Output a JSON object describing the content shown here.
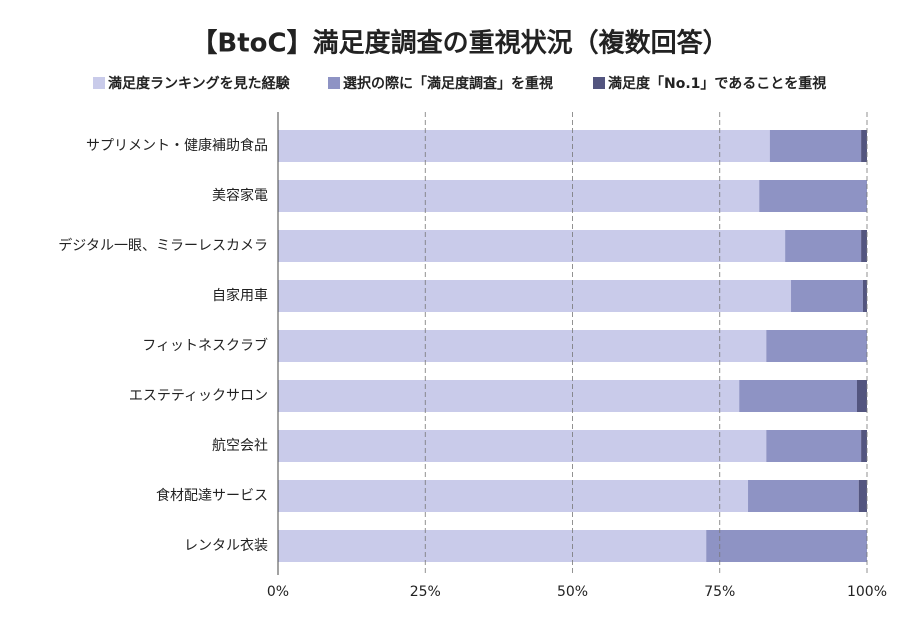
{
  "chart_data": {
    "type": "stacked-barh",
    "title": "【BtoC】満足度調査の重視状況（複数回答）",
    "categories": [
      "サプリメント・健康補助食品",
      "美容家電",
      "デジタル一眼、ミラーレスカメラ",
      "自家用車",
      "フィットネスクラブ",
      "エステティックサロン",
      "航空会社",
      "食材配達サービス",
      "レンタル衣装"
    ],
    "series": [
      {
        "name": "満足度ランキングを見た経験",
        "color": "#c9cbea",
        "values": [
          83.5,
          81.7,
          86.1,
          87.1,
          82.9,
          78.3,
          82.9,
          79.8,
          72.7
        ]
      },
      {
        "name": "選択の際に「満足度調査」を重視",
        "color": "#8e93c4",
        "values": [
          15.5,
          18.3,
          12.9,
          12.2,
          17.1,
          20.0,
          16.1,
          18.8,
          27.3
        ]
      },
      {
        "name": "満足度「No.1」であることを重視",
        "color": "#53557f",
        "values": [
          1.0,
          0,
          1.0,
          0.7,
          0,
          1.7,
          1.0,
          1.4,
          0
        ]
      }
    ],
    "xlim": [
      0,
      100
    ],
    "xticks": [
      {
        "value": 0,
        "label": "0%"
      },
      {
        "value": 25,
        "label": "25%"
      },
      {
        "value": 50,
        "label": "50%"
      },
      {
        "value": 75,
        "label": "75%"
      },
      {
        "value": 100,
        "label": "100%"
      }
    ],
    "grid": true,
    "legend": "top"
  }
}
